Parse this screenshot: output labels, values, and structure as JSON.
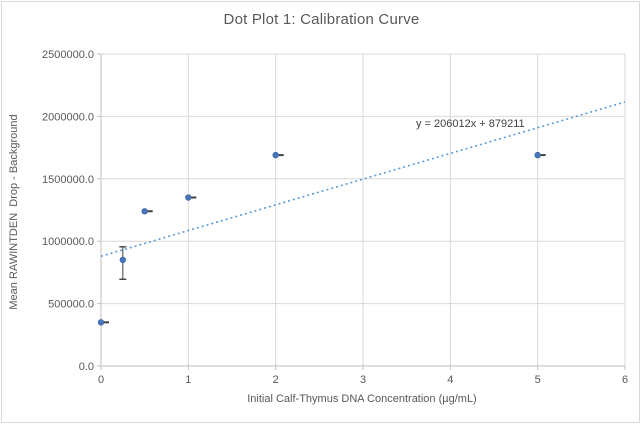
{
  "chart_data": {
    "type": "scatter",
    "title": "Dot Plot 1: Calibration Curve",
    "xlabel": "Initial Calf-Thymus DNA Concentration (µg/mL)",
    "ylabel": "Mean RAWINTDEN  Drop - Background",
    "xlim": [
      0,
      6
    ],
    "ylim": [
      0,
      2500000
    ],
    "xticks": [
      0,
      1,
      2,
      3,
      4,
      5,
      6
    ],
    "xtick_labels": [
      "0",
      "1",
      "2",
      "3",
      "4",
      "5",
      "6"
    ],
    "yticks": [
      0,
      500000,
      1000000,
      1500000,
      2000000,
      2500000
    ],
    "ytick_labels": [
      "0.0",
      "500000.0",
      "1000000.0",
      "1500000.0",
      "2000000.0",
      "2500000.0"
    ],
    "grid": "major-x and major-y, light gray, plot area fully framed",
    "legend": "none",
    "series": [
      {
        "name": "Mean RAWINTDEN Drop - Background",
        "marker": "circle",
        "marker_color": "#4677BD",
        "marker_edge": "#3B64A0",
        "points": [
          {
            "x": 0,
            "y": 350000,
            "err_cap": true
          },
          {
            "x": 0.25,
            "y": 850000,
            "y_err_low": 695000,
            "y_err_high": 955000
          },
          {
            "x": 0.5,
            "y": 1240000,
            "err_cap": true
          },
          {
            "x": 1,
            "y": 1350000,
            "err_cap": true
          },
          {
            "x": 2,
            "y": 1690000,
            "err_cap": true
          },
          {
            "x": 5,
            "y": 1690000,
            "err_cap": true
          }
        ]
      }
    ],
    "trendline": {
      "equation": "y = 206012x + 879211",
      "slope": 206012,
      "intercept": 879211,
      "style": "dotted",
      "color": "#5B9BD5"
    },
    "colors": {
      "background": "#FFFFFF",
      "border": "#D9D9D9",
      "grid": "#D9D9D9",
      "axis": "#BFBFBF",
      "text": "#595959",
      "equation_text": "#404040",
      "error_bar": "#404040"
    }
  }
}
